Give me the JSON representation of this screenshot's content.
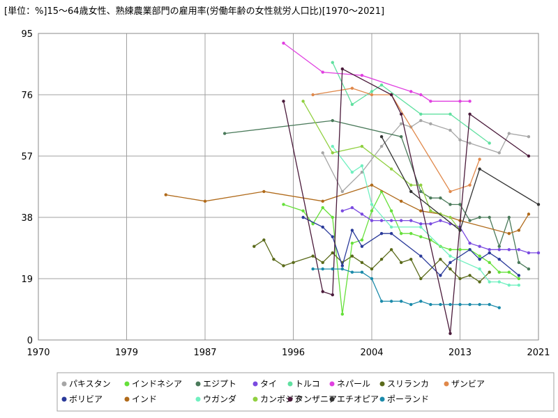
{
  "chart_data": {
    "type": "line",
    "title": "[単位：%]15～64歳女性、熟練農業部門の雇用率(労働年齢の女性就労人口比)[1970～2021]",
    "xlabel": "",
    "ylabel": "",
    "xlim": [
      1970,
      2021
    ],
    "ylim": [
      0,
      95
    ],
    "x_ticks": [
      "1970",
      "1979",
      "1987",
      "1996",
      "2004",
      "2013",
      "2021"
    ],
    "y_ticks": [
      "0",
      "19",
      "38",
      "57",
      "76",
      "95"
    ],
    "grid": true,
    "legend_position": "bottom",
    "series": [
      {
        "name": "パキスタン",
        "color": "#a6a6a6",
        "points": [
          [
            1999,
            58
          ],
          [
            2001,
            46
          ],
          [
            2003,
            52
          ],
          [
            2005,
            60
          ],
          [
            2007,
            67
          ],
          [
            2008,
            66
          ],
          [
            2009,
            68
          ],
          [
            2010,
            67
          ],
          [
            2012,
            65
          ],
          [
            2013,
            62
          ],
          [
            2014,
            61
          ],
          [
            2017,
            58
          ],
          [
            2018,
            64
          ],
          [
            2020,
            63
          ]
        ]
      },
      {
        "name": "インドネシア",
        "color": "#66e03a",
        "points": [
          [
            1995,
            42
          ],
          [
            1997,
            40
          ],
          [
            1998,
            36
          ],
          [
            1999,
            41
          ],
          [
            2000,
            38
          ],
          [
            2001,
            8
          ],
          [
            2002,
            30
          ],
          [
            2003,
            31
          ],
          [
            2004,
            40
          ],
          [
            2005,
            46
          ],
          [
            2006,
            40
          ],
          [
            2007,
            33
          ],
          [
            2008,
            33
          ],
          [
            2009,
            32
          ],
          [
            2010,
            31
          ],
          [
            2011,
            29
          ],
          [
            2012,
            28
          ],
          [
            2013,
            28
          ],
          [
            2014,
            28
          ],
          [
            2015,
            26
          ],
          [
            2016,
            24
          ],
          [
            2017,
            21
          ],
          [
            2018,
            21
          ],
          [
            2019,
            19
          ]
        ]
      },
      {
        "name": "エジプト",
        "color": "#4a7a5a",
        "points": [
          [
            1989,
            64
          ],
          [
            2000,
            68
          ],
          [
            2007,
            63
          ],
          [
            2009,
            46
          ],
          [
            2010,
            44
          ],
          [
            2011,
            44
          ],
          [
            2012,
            42
          ],
          [
            2013,
            42
          ],
          [
            2014,
            37
          ],
          [
            2015,
            38
          ],
          [
            2016,
            38
          ],
          [
            2017,
            29
          ],
          [
            2018,
            38
          ],
          [
            2019,
            24
          ],
          [
            2020,
            22
          ]
        ]
      },
      {
        "name": "タイ",
        "color": "#7a4ae0",
        "points": [
          [
            2001,
            40
          ],
          [
            2002,
            41
          ],
          [
            2003,
            39
          ],
          [
            2004,
            37
          ],
          [
            2005,
            37
          ],
          [
            2006,
            37
          ],
          [
            2007,
            37
          ],
          [
            2008,
            37
          ],
          [
            2009,
            36
          ],
          [
            2010,
            36
          ],
          [
            2011,
            37
          ],
          [
            2012,
            36
          ],
          [
            2013,
            35
          ],
          [
            2014,
            30
          ],
          [
            2015,
            29
          ],
          [
            2016,
            28
          ],
          [
            2017,
            28
          ],
          [
            2018,
            28
          ],
          [
            2019,
            28
          ],
          [
            2020,
            27
          ],
          [
            2021,
            27
          ]
        ]
      },
      {
        "name": "トルコ",
        "color": "#60e0a0",
        "points": [
          [
            2000,
            86
          ],
          [
            2002,
            73
          ],
          [
            2004,
            77
          ],
          [
            2005,
            79
          ],
          [
            2009,
            70
          ],
          [
            2012,
            70
          ],
          [
            2016,
            61
          ]
        ]
      },
      {
        "name": "ネパール",
        "color": "#e040e0",
        "points": [
          [
            1995,
            92
          ],
          [
            1999,
            83
          ],
          [
            2003,
            82
          ],
          [
            2008,
            77
          ],
          [
            2009,
            76
          ],
          [
            2010,
            74
          ],
          [
            2013,
            74
          ],
          [
            2014,
            74
          ]
        ]
      },
      {
        "name": "スリランカ",
        "color": "#5a6a1a",
        "points": [
          [
            1992,
            29
          ],
          [
            1993,
            31
          ],
          [
            1994,
            25
          ],
          [
            1995,
            23
          ],
          [
            1996,
            24
          ],
          [
            1998,
            26
          ],
          [
            1999,
            24
          ],
          [
            2000,
            27
          ],
          [
            2001,
            24
          ],
          [
            2002,
            26
          ],
          [
            2003,
            24
          ],
          [
            2004,
            22
          ],
          [
            2005,
            25
          ],
          [
            2006,
            28
          ],
          [
            2007,
            24
          ],
          [
            2008,
            25
          ],
          [
            2009,
            19
          ],
          [
            2011,
            25
          ],
          [
            2012,
            22
          ],
          [
            2013,
            19
          ],
          [
            2014,
            20
          ],
          [
            2015,
            18
          ],
          [
            2016,
            21
          ]
        ]
      },
      {
        "name": "ザンビア",
        "color": "#e0884a",
        "points": [
          [
            1998,
            76
          ],
          [
            2002,
            78
          ],
          [
            2004,
            76
          ],
          [
            2006,
            76
          ],
          [
            2012,
            46
          ],
          [
            2014,
            48
          ],
          [
            2015,
            56
          ]
        ]
      },
      {
        "name": "ボリビア",
        "color": "#2a3a9a",
        "points": [
          [
            1997,
            38
          ],
          [
            1999,
            35
          ],
          [
            2000,
            32
          ],
          [
            2001,
            23
          ],
          [
            2002,
            34
          ],
          [
            2003,
            29
          ],
          [
            2005,
            33
          ],
          [
            2006,
            33
          ],
          [
            2009,
            26
          ],
          [
            2011,
            20
          ],
          [
            2012,
            24
          ],
          [
            2014,
            28
          ],
          [
            2015,
            25
          ],
          [
            2016,
            27
          ],
          [
            2017,
            25
          ],
          [
            2019,
            20
          ]
        ]
      },
      {
        "name": "インド",
        "color": "#b06a1a",
        "points": [
          [
            1983,
            45
          ],
          [
            1987,
            43
          ],
          [
            1993,
            46
          ],
          [
            1999,
            43
          ],
          [
            2004,
            48
          ],
          [
            2007,
            43
          ],
          [
            2009,
            40
          ],
          [
            2011,
            39
          ],
          [
            2013,
            37
          ],
          [
            2018,
            33
          ],
          [
            2019,
            34
          ],
          [
            2020,
            39
          ]
        ]
      },
      {
        "name": "ウガンダ",
        "color": "#70f0c0",
        "points": [
          [
            2000,
            60
          ],
          [
            2002,
            52
          ],
          [
            2003,
            54
          ],
          [
            2004,
            42
          ],
          [
            2006,
            35
          ],
          [
            2009,
            35
          ],
          [
            2012,
            26
          ],
          [
            2015,
            22
          ],
          [
            2016,
            18
          ],
          [
            2017,
            18
          ],
          [
            2018,
            17
          ],
          [
            2019,
            17
          ]
        ]
      },
      {
        "name": "カンボジア",
        "color": "#90d040",
        "points": [
          [
            1997,
            74
          ],
          [
            2000,
            58
          ],
          [
            2003,
            60
          ],
          [
            2006,
            53
          ],
          [
            2008,
            48
          ],
          [
            2009,
            48
          ],
          [
            2010,
            40
          ],
          [
            2011,
            39
          ],
          [
            2012,
            38
          ],
          [
            2013,
            34
          ]
        ]
      },
      {
        "name": "タンザニア",
        "color": "#4a1a3a",
        "points": [
          [
            1995,
            74
          ],
          [
            1999,
            15
          ],
          [
            2000,
            14
          ],
          [
            2001,
            84
          ],
          [
            2006,
            76
          ],
          [
            2007,
            70
          ],
          [
            2012,
            2
          ],
          [
            2014,
            70
          ],
          [
            2020,
            57
          ]
        ]
      },
      {
        "name": "エチオピア",
        "color": "#333333",
        "points": [
          [
            2005,
            63
          ],
          [
            2008,
            46
          ],
          [
            2013,
            34
          ],
          [
            2015,
            53
          ],
          [
            2021,
            42
          ]
        ]
      },
      {
        "name": "ポーランド",
        "color": "#1a8aaa",
        "points": [
          [
            1998,
            22
          ],
          [
            1999,
            22
          ],
          [
            2000,
            22
          ],
          [
            2001,
            22
          ],
          [
            2002,
            21
          ],
          [
            2003,
            21
          ],
          [
            2004,
            19
          ],
          [
            2005,
            12
          ],
          [
            2006,
            12
          ],
          [
            2007,
            12
          ],
          [
            2008,
            11
          ],
          [
            2009,
            12
          ],
          [
            2010,
            11
          ],
          [
            2011,
            11
          ],
          [
            2012,
            11
          ],
          [
            2013,
            11
          ],
          [
            2014,
            11
          ],
          [
            2015,
            11
          ],
          [
            2016,
            11
          ],
          [
            2017,
            10
          ]
        ]
      }
    ]
  }
}
